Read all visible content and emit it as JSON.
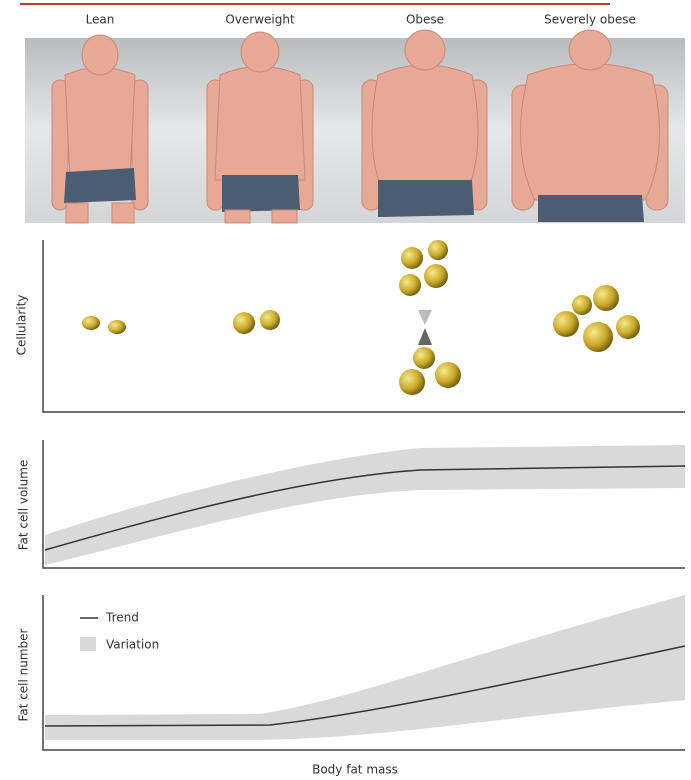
{
  "header": {
    "categories": [
      "Lean",
      "Overweight",
      "Obese",
      "Severely obese"
    ]
  },
  "panels": [
    {
      "y_label": "Cellularity"
    },
    {
      "y_label": "Fat cell volume"
    },
    {
      "y_label": "Fat cell number",
      "legend": [
        "Trend",
        "Variation"
      ]
    }
  ],
  "x_label": "Body fat mass"
}
